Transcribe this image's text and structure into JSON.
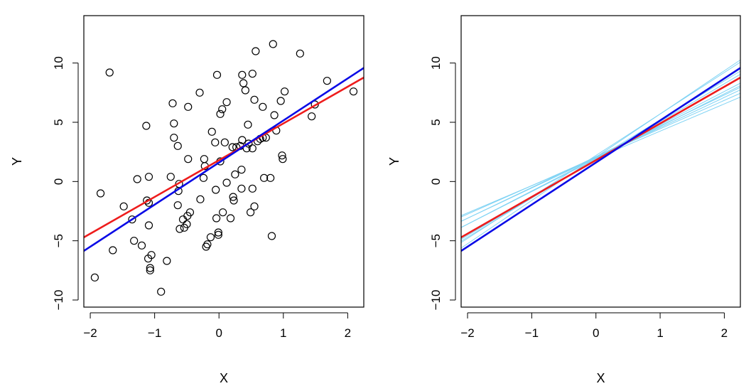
{
  "chart_data": [
    {
      "type": "scatter",
      "xlabel": "X",
      "ylabel": "Y",
      "xlim": [
        -2.1,
        2.25
      ],
      "ylim": [
        -10.6,
        14.0
      ],
      "xticks": [
        -2,
        -1,
        0,
        1,
        2
      ],
      "yticks": [
        -10,
        -5,
        0,
        5,
        10
      ],
      "points": [
        [
          -1.93,
          -8.1
        ],
        [
          -1.84,
          -1.0
        ],
        [
          -1.7,
          9.2
        ],
        [
          -1.65,
          -5.8
        ],
        [
          -1.48,
          -2.1
        ],
        [
          -1.35,
          -3.2
        ],
        [
          -1.32,
          -5.0
        ],
        [
          -1.27,
          0.2
        ],
        [
          -1.2,
          -5.4
        ],
        [
          -1.13,
          4.7
        ],
        [
          -1.12,
          -1.6
        ],
        [
          -1.1,
          -6.5
        ],
        [
          -1.09,
          0.4
        ],
        [
          -1.09,
          -1.8
        ],
        [
          -1.09,
          -3.7
        ],
        [
          -1.07,
          -7.3
        ],
        [
          -1.07,
          -7.5
        ],
        [
          -1.05,
          -6.2
        ],
        [
          -0.9,
          -9.3
        ],
        [
          -0.81,
          -6.7
        ],
        [
          -0.75,
          0.4
        ],
        [
          -0.72,
          6.6
        ],
        [
          -0.7,
          3.7
        ],
        [
          -0.7,
          4.9
        ],
        [
          -0.64,
          3.0
        ],
        [
          -0.64,
          -2.0
        ],
        [
          -0.63,
          -0.8
        ],
        [
          -0.62,
          -0.2
        ],
        [
          -0.61,
          -4.0
        ],
        [
          -0.56,
          -3.2
        ],
        [
          -0.54,
          -3.9
        ],
        [
          -0.5,
          -3.6
        ],
        [
          -0.49,
          -2.9
        ],
        [
          -0.48,
          6.3
        ],
        [
          -0.48,
          1.9
        ],
        [
          -0.45,
          -2.6
        ],
        [
          -0.3,
          7.5
        ],
        [
          -0.29,
          -1.5
        ],
        [
          -0.24,
          0.3
        ],
        [
          -0.23,
          1.9
        ],
        [
          -0.22,
          1.3
        ],
        [
          -0.2,
          -5.5
        ],
        [
          -0.18,
          -5.3
        ],
        [
          -0.13,
          -4.7
        ],
        [
          -0.11,
          4.2
        ],
        [
          -0.06,
          3.3
        ],
        [
          -0.05,
          -0.7
        ],
        [
          -0.04,
          -3.1
        ],
        [
          -0.03,
          9.0
        ],
        [
          -0.01,
          -4.5
        ],
        [
          -0.01,
          -4.3
        ],
        [
          0.02,
          5.7
        ],
        [
          0.02,
          1.7
        ],
        [
          0.05,
          6.1
        ],
        [
          0.06,
          -2.6
        ],
        [
          0.09,
          3.3
        ],
        [
          0.12,
          -0.1
        ],
        [
          0.12,
          6.7
        ],
        [
          0.18,
          -3.1
        ],
        [
          0.21,
          2.9
        ],
        [
          0.22,
          -1.3
        ],
        [
          0.23,
          -1.6
        ],
        [
          0.25,
          0.6
        ],
        [
          0.27,
          2.9
        ],
        [
          0.33,
          3.0
        ],
        [
          0.35,
          -0.6
        ],
        [
          0.35,
          1.0
        ],
        [
          0.36,
          3.5
        ],
        [
          0.36,
          9.0
        ],
        [
          0.38,
          8.3
        ],
        [
          0.41,
          7.7
        ],
        [
          0.43,
          2.8
        ],
        [
          0.45,
          4.8
        ],
        [
          0.46,
          3.2
        ],
        [
          0.49,
          -2.6
        ],
        [
          0.52,
          -0.6
        ],
        [
          0.52,
          9.1
        ],
        [
          0.52,
          2.8
        ],
        [
          0.55,
          -2.1
        ],
        [
          0.55,
          6.9
        ],
        [
          0.57,
          11.0
        ],
        [
          0.6,
          3.4
        ],
        [
          0.64,
          3.6
        ],
        [
          0.68,
          3.7
        ],
        [
          0.68,
          6.3
        ],
        [
          0.7,
          0.3
        ],
        [
          0.73,
          3.7
        ],
        [
          0.8,
          0.3
        ],
        [
          0.82,
          -4.6
        ],
        [
          0.84,
          11.6
        ],
        [
          0.86,
          5.6
        ],
        [
          0.89,
          4.3
        ],
        [
          0.96,
          6.8
        ],
        [
          0.98,
          2.2
        ],
        [
          0.99,
          1.9
        ],
        [
          1.02,
          7.6
        ],
        [
          1.26,
          10.8
        ],
        [
          1.44,
          5.5
        ],
        [
          1.49,
          6.5
        ],
        [
          1.68,
          8.5
        ],
        [
          2.09,
          7.6
        ]
      ],
      "lines": [
        {
          "color": "#ee1c1c",
          "intercept": 1.8,
          "slope": 3.1,
          "width": 2.6
        },
        {
          "color": "#0a0ae6",
          "intercept": 1.6,
          "slope": 3.55,
          "width": 2.6
        }
      ]
    },
    {
      "type": "line",
      "xlabel": "X",
      "ylabel": "Y",
      "xlim": [
        -2.1,
        2.25
      ],
      "ylim": [
        -10.6,
        14.0
      ],
      "xticks": [
        -2,
        -1,
        0,
        1,
        2
      ],
      "yticks": [
        -10,
        -5,
        0,
        5,
        10
      ],
      "lines": [
        {
          "color": "#7fd3f4",
          "intercept": 1.95,
          "slope": 2.3,
          "width": 1
        },
        {
          "color": "#7fd3f4",
          "intercept": 2.05,
          "slope": 2.4,
          "width": 1
        },
        {
          "color": "#7fd3f4",
          "intercept": 2.0,
          "slope": 2.55,
          "width": 1
        },
        {
          "color": "#7fd3f4",
          "intercept": 2.1,
          "slope": 2.6,
          "width": 1
        },
        {
          "color": "#7fd3f4",
          "intercept": 1.9,
          "slope": 2.75,
          "width": 1
        },
        {
          "color": "#7fd3f4",
          "intercept": 2.0,
          "slope": 2.8,
          "width": 1
        },
        {
          "color": "#7fd3f4",
          "intercept": 1.85,
          "slope": 3.2,
          "width": 1
        },
        {
          "color": "#7fd3f4",
          "intercept": 2.2,
          "slope": 3.5,
          "width": 1
        },
        {
          "color": "#7fd3f4",
          "intercept": 1.9,
          "slope": 3.3,
          "width": 1
        },
        {
          "color": "#7fd3f4",
          "intercept": 2.05,
          "slope": 3.65,
          "width": 1
        },
        {
          "color": "#ee1c1c",
          "intercept": 1.8,
          "slope": 3.1,
          "width": 2.6
        },
        {
          "color": "#0a0ae6",
          "intercept": 1.6,
          "slope": 3.55,
          "width": 2.6
        }
      ]
    }
  ]
}
